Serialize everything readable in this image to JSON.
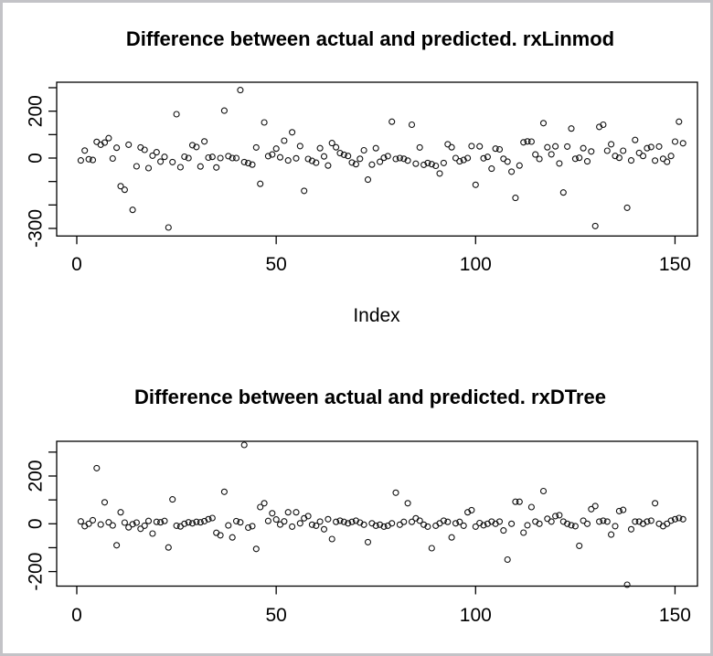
{
  "window": {
    "background": "#ffffff",
    "border_color": "#c3c3c7",
    "plot_color": "#000000",
    "marker": "open-circle"
  },
  "chart_data": [
    {
      "type": "scatter",
      "title": "Difference between actual and predicted. rxLinmod",
      "xlabel": "Index",
      "ylabel": "",
      "x_ticks": [
        0,
        50,
        100,
        150
      ],
      "y_ticks": [
        {
          "value": 300,
          "label": ""
        },
        {
          "value": 200,
          "label": "200"
        },
        {
          "value": 100,
          "label": ""
        },
        {
          "value": 0,
          "label": "0"
        },
        {
          "value": -100,
          "label": ""
        },
        {
          "value": -200,
          "label": ""
        },
        {
          "value": -300,
          "label": "-300"
        }
      ],
      "xlim": [
        -5,
        156
      ],
      "ylim": [
        -332,
        323
      ],
      "grid": false,
      "x_start_index": 1,
      "values": [
        -10,
        32,
        -5,
        -8,
        69,
        57,
        66,
        85,
        -2,
        44,
        -120,
        -135,
        57,
        -221,
        -35,
        45,
        35,
        -43,
        10,
        25,
        -15,
        5,
        -296,
        -17,
        187,
        -39,
        6,
        0,
        55,
        47,
        -36,
        71,
        2,
        5,
        -40,
        0,
        202,
        8,
        0,
        0,
        290,
        -17,
        -22,
        -28,
        45,
        -110,
        152,
        8,
        15,
        40,
        3,
        74,
        -10,
        110,
        -1,
        51,
        -140,
        -4,
        -12,
        -20,
        42,
        7,
        -32,
        64,
        46,
        21,
        14,
        9,
        -19,
        -26,
        -3,
        33,
        -92,
        -28,
        42,
        -16,
        1,
        8,
        155,
        -4,
        0,
        -3,
        -11,
        142,
        -24,
        45,
        -29,
        -21,
        -26,
        -33,
        -66,
        -21,
        59,
        46,
        0,
        -14,
        -8,
        0,
        51,
        -114,
        50,
        -1,
        5,
        -45,
        40,
        37,
        -3,
        -15,
        -58,
        -170,
        -32,
        67,
        71,
        70,
        15,
        -4,
        149,
        46,
        16,
        50,
        -23,
        -147,
        49,
        126,
        -3,
        1,
        42,
        -14,
        28,
        -290,
        133,
        142,
        31,
        59,
        9,
        1,
        31,
        -212,
        -10,
        77,
        22,
        9,
        42,
        47,
        -11,
        49,
        -3,
        -16,
        9,
        70,
        155,
        63
      ]
    },
    {
      "type": "scatter",
      "title": "Difference between actual and predicted. rxDTree",
      "xlabel": "",
      "ylabel": "",
      "x_ticks": [
        0,
        50,
        100,
        150
      ],
      "y_ticks": [
        {
          "value": 300,
          "label": ""
        },
        {
          "value": 200,
          "label": "200"
        },
        {
          "value": 100,
          "label": ""
        },
        {
          "value": 0,
          "label": "0"
        },
        {
          "value": -100,
          "label": ""
        },
        {
          "value": -200,
          "label": "-200"
        }
      ],
      "xlim": [
        -5,
        156
      ],
      "ylim": [
        -261,
        345
      ],
      "grid": false,
      "x_start_index": 1,
      "values": [
        10,
        -10,
        0,
        15,
        233,
        -3,
        90,
        6,
        -7,
        -90,
        48,
        5,
        -15,
        -2,
        5,
        -21,
        -8,
        12,
        -41,
        8,
        6,
        12,
        -99,
        102,
        -8,
        -11,
        0,
        6,
        2,
        8,
        6,
        11,
        19,
        24,
        -38,
        -48,
        134,
        -7,
        -57,
        11,
        6,
        330,
        -16,
        -10,
        -105,
        70,
        86,
        12,
        44,
        18,
        -3,
        10,
        48,
        -12,
        48,
        2,
        23,
        32,
        -4,
        -8,
        9,
        -23,
        19,
        -64,
        8,
        13,
        8,
        2,
        8,
        13,
        5,
        -4,
        -77,
        2,
        -8,
        -4,
        -12,
        -8,
        2,
        130,
        -4,
        8,
        86,
        8,
        23,
        13,
        -4,
        -12,
        -102,
        -8,
        2,
        13,
        8,
        -57,
        2,
        8,
        -8,
        48,
        57,
        -12,
        3,
        -6,
        0,
        9,
        0,
        9,
        -28,
        -150,
        0,
        92,
        92,
        -37,
        -6,
        70,
        9,
        0,
        137,
        21,
        9,
        32,
        36,
        9,
        0,
        -6,
        -10,
        -92,
        13,
        0,
        61,
        74,
        9,
        13,
        9,
        -45,
        -10,
        53,
        58,
        -255,
        -23,
        9,
        9,
        0,
        9,
        13,
        86,
        0,
        -10,
        0,
        13,
        19,
        24,
        19
      ]
    }
  ]
}
